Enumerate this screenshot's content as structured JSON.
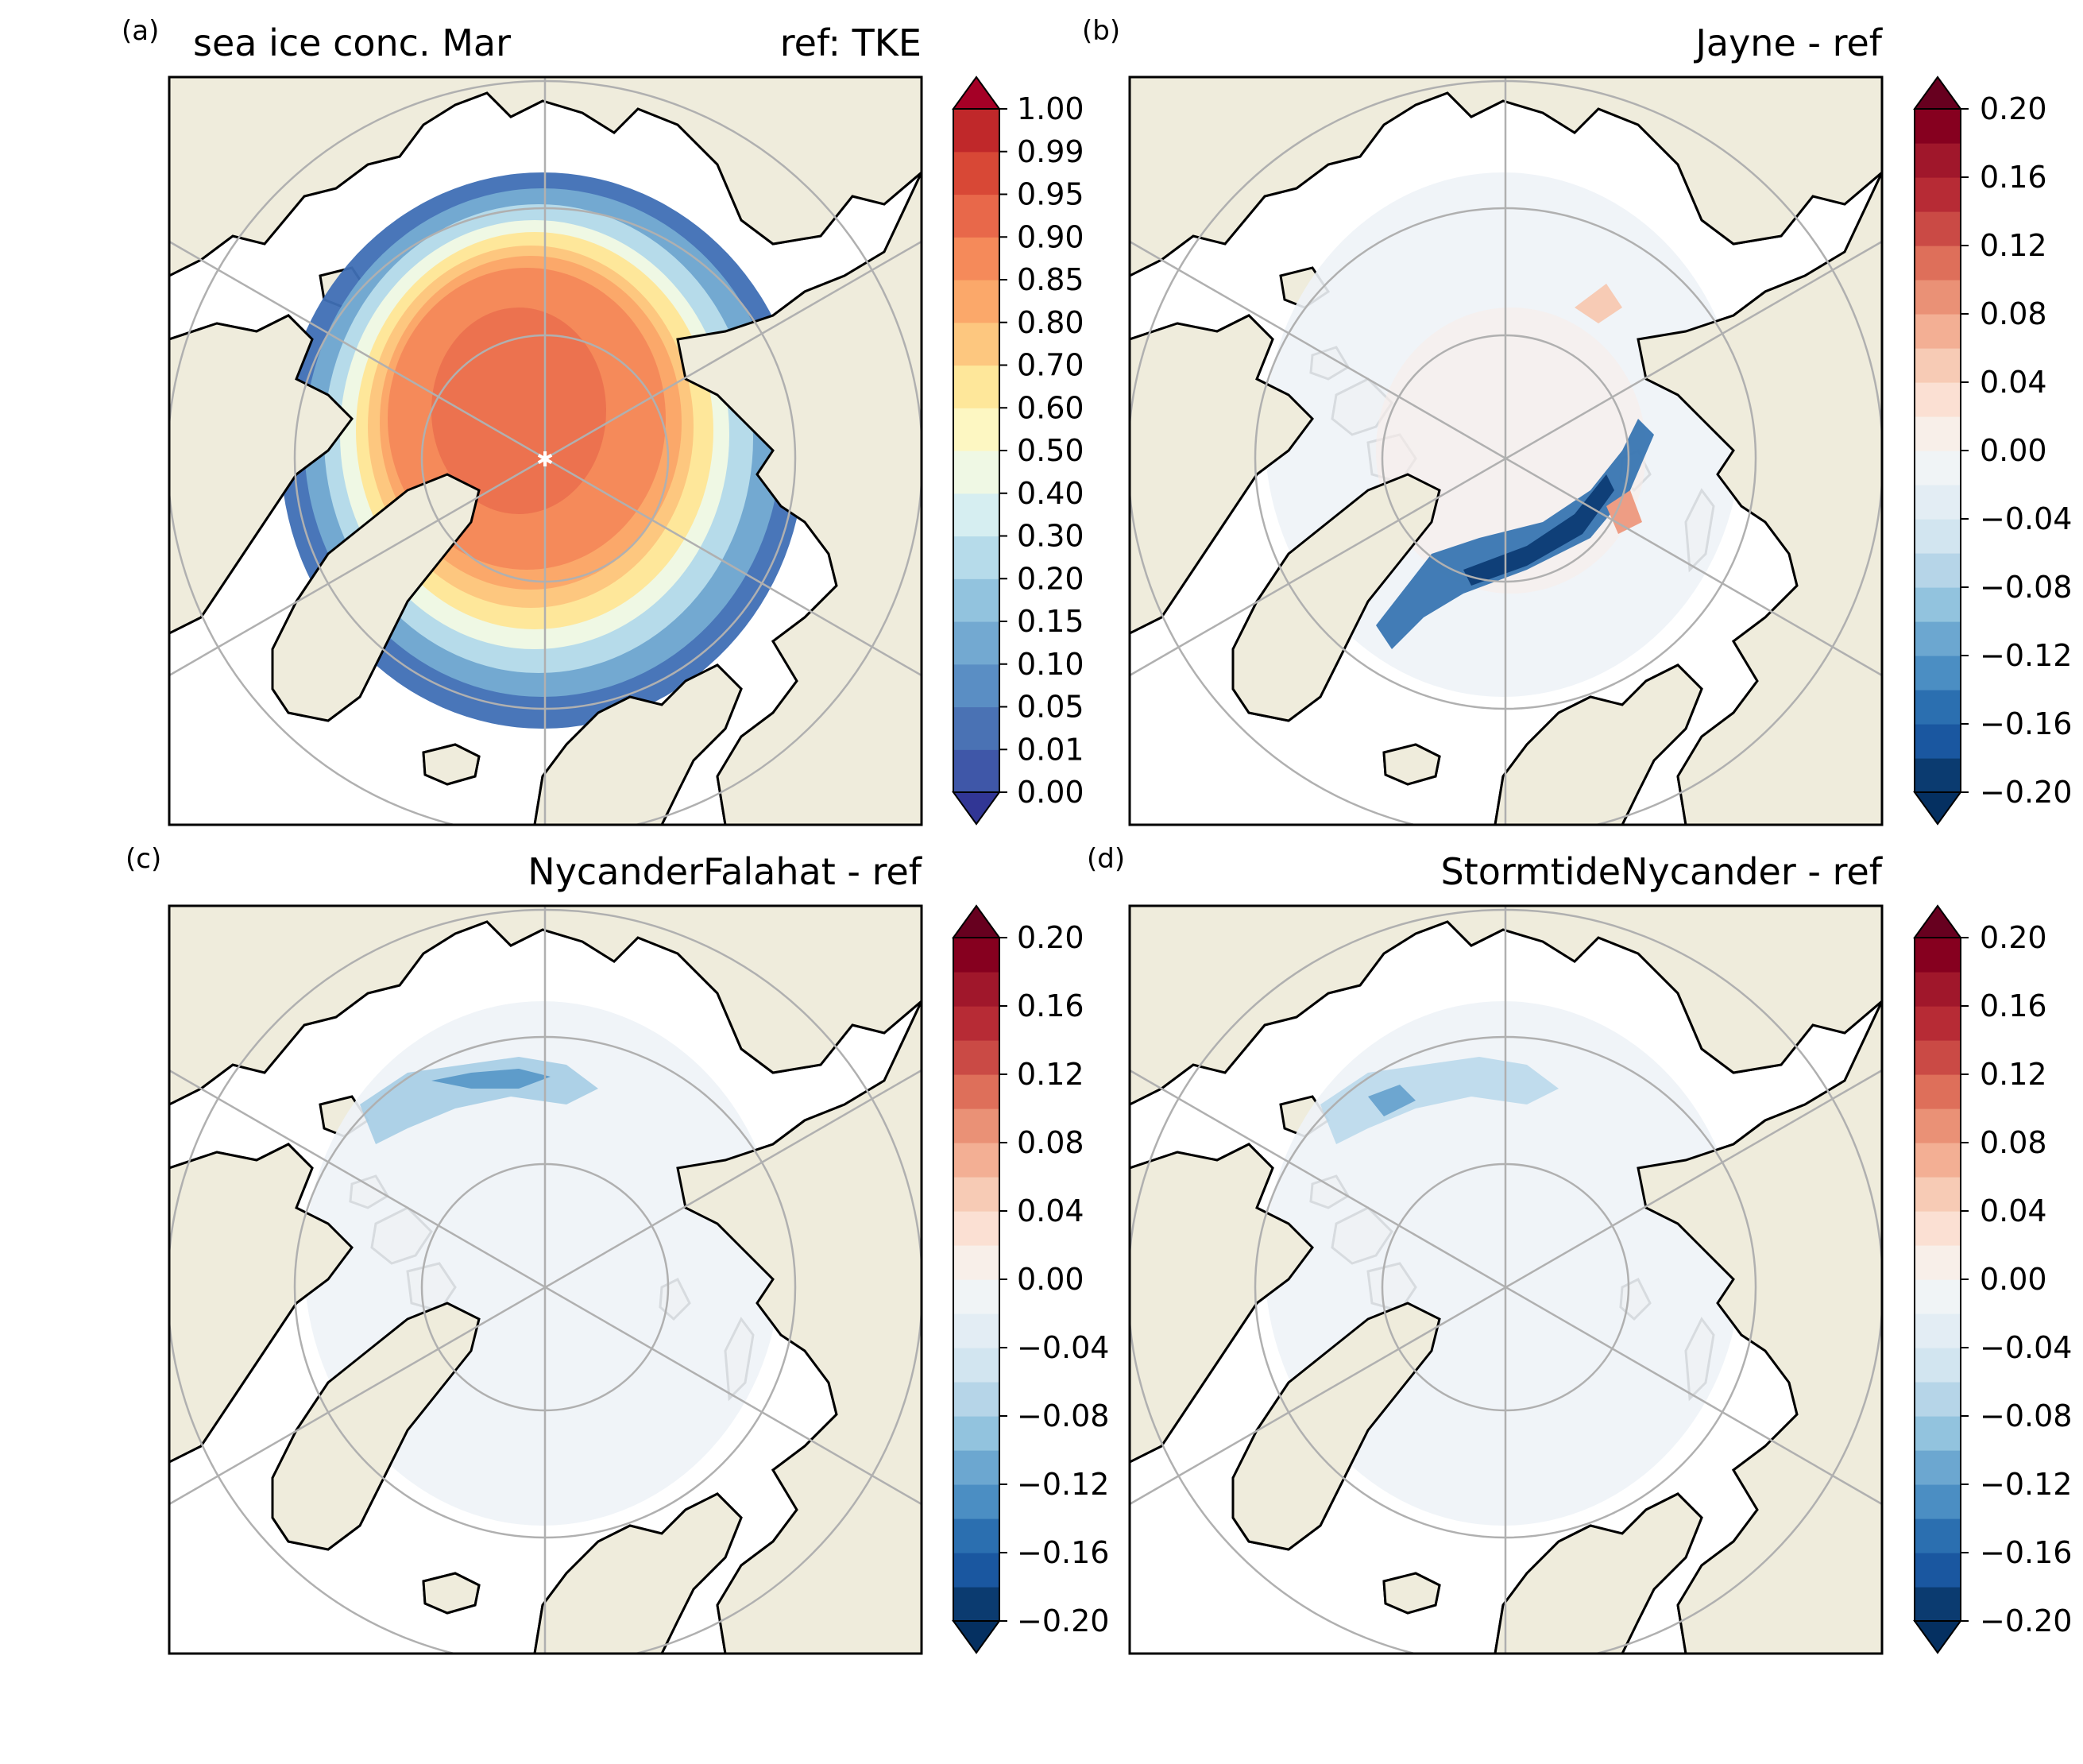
{
  "panels": [
    {
      "letter": "(a)",
      "title_left": "sea ice conc. Mar",
      "title_right": "ref: TKE",
      "kind": "absolute",
      "colorbar": {
        "type": "sequential-RdYlBu_r",
        "ticks": [
          "0.00",
          "0.01",
          "0.05",
          "0.10",
          "0.15",
          "0.20",
          "0.30",
          "0.40",
          "0.50",
          "0.60",
          "0.70",
          "0.80",
          "0.85",
          "0.90",
          "0.95",
          "0.99",
          "1.00"
        ],
        "colors": [
          "#3f57a8",
          "#4a72b4",
          "#5a8ec4",
          "#73a9d1",
          "#92c3de",
          "#b6dbea",
          "#d6eef1",
          "#eff8e4",
          "#fdf7c2",
          "#fee79a",
          "#fdc77f",
          "#fba86a",
          "#f58a5a",
          "#e8684a",
          "#d84836",
          "#c0282a"
        ],
        "extend_low_color": "#313695",
        "extend_high_color": "#a50026"
      }
    },
    {
      "letter": "(b)",
      "title_left": "",
      "title_right": "Jayne - ref",
      "kind": "difference-strong",
      "colorbar": {
        "type": "diverging-RdBu_r",
        "ticks": [
          "−0.20",
          "−0.16",
          "−0.12",
          "−0.08",
          "−0.04",
          "0.00",
          "0.04",
          "0.08",
          "0.12",
          "0.16",
          "0.20"
        ],
        "extend_low_color": "#053061",
        "extend_high_color": "#67001f"
      }
    },
    {
      "letter": "(c)",
      "title_left": "",
      "title_right": "NycanderFalahat - ref",
      "kind": "difference-weak",
      "colorbar": {
        "type": "diverging-RdBu_r",
        "ticks": [
          "−0.20",
          "−0.16",
          "−0.12",
          "−0.08",
          "−0.04",
          "0.00",
          "0.04",
          "0.08",
          "0.12",
          "0.16",
          "0.20"
        ],
        "extend_low_color": "#053061",
        "extend_high_color": "#67001f"
      }
    },
    {
      "letter": "(d)",
      "title_left": "",
      "title_right": "StormtideNycander - ref",
      "kind": "difference-weak",
      "colorbar": {
        "type": "diverging-RdBu_r",
        "ticks": [
          "−0.20",
          "−0.16",
          "−0.12",
          "−0.08",
          "−0.04",
          "0.00",
          "0.04",
          "0.08",
          "0.12",
          "0.16",
          "0.20"
        ],
        "extend_low_color": "#053061",
        "extend_high_color": "#67001f"
      }
    }
  ],
  "map_style": {
    "projection": "north-polar-stereographic",
    "land_color": "#efecdc",
    "ocean_color": "#ffffff",
    "coastline_color": "#000000",
    "gridline_color": "#b0b0b0"
  }
}
